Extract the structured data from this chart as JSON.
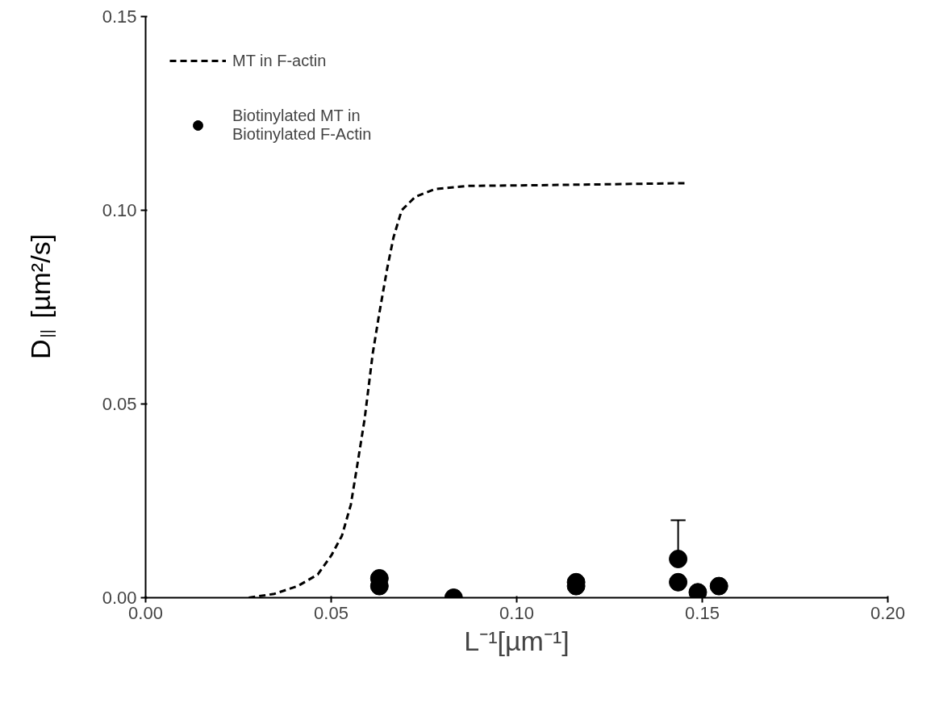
{
  "chart_data": {
    "type": "line",
    "xlabel": "L⁻¹[µm⁻¹]",
    "ylabel": "D$_{||}$ [µm²/s]",
    "xlim": [
      0,
      0.2
    ],
    "ylim": [
      0,
      0.15
    ],
    "xticks": [
      {
        "value": 0,
        "label": "0.00"
      },
      {
        "value": 0.05,
        "label": "0.05"
      },
      {
        "value": 0.1,
        "label": "0.10"
      },
      {
        "value": 0.15,
        "label": "0.15"
      },
      {
        "value": 0.2,
        "label": "0.20"
      }
    ],
    "yticks": [
      {
        "value": 0,
        "label": "0.00"
      },
      {
        "value": 0.05,
        "label": "0.05"
      },
      {
        "value": 0.1,
        "label": "0.10"
      },
      {
        "value": 0.15,
        "label": "0.15"
      }
    ],
    "grid": false,
    "legend": "top left",
    "series": [
      {
        "name": "MT in F-actin",
        "line_style": "dashed",
        "marker": "none",
        "color": "#000000",
        "x": [
          0.0278,
          0.0347,
          0.041,
          0.0464,
          0.0501,
          0.0529,
          0.0553,
          0.057,
          0.059,
          0.0612,
          0.0629,
          0.0651,
          0.0668,
          0.069,
          0.0727,
          0.0781,
          0.0868,
          0.1085,
          0.1455
        ],
        "values": [
          0.0,
          0.001,
          0.003,
          0.006,
          0.011,
          0.016,
          0.024,
          0.034,
          0.046,
          0.063,
          0.073,
          0.085,
          0.093,
          0.1,
          0.1035,
          0.1055,
          0.1063,
          0.1065,
          0.107
        ]
      },
      {
        "name": "Biotinylated MT in\nBiotinylated F-Actin",
        "type": "scatter",
        "marker": "circle",
        "color": "#000000",
        "x": [
          0.063,
          0.063,
          0.083,
          0.116,
          0.116,
          0.1435,
          0.1435,
          0.1488,
          0.1545
        ],
        "values": [
          0.005,
          0.003,
          0.0,
          0.004,
          0.003,
          0.01,
          0.004,
          0.0014,
          0.003
        ],
        "errors": [
          null,
          null,
          null,
          null,
          null,
          [
            0.01,
            0.02
          ],
          null,
          null,
          null
        ]
      }
    ]
  }
}
